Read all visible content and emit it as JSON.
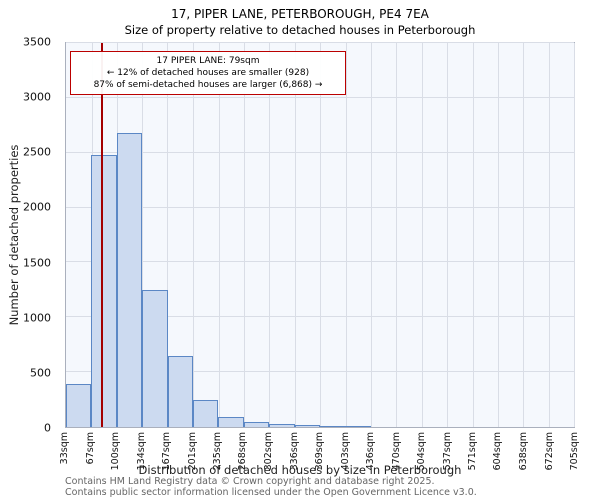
{
  "title": "17, PIPER LANE, PETERBOROUGH, PE4 7EA",
  "subtitle": "Size of property relative to detached houses in Peterborough",
  "annotation": {
    "line1": "17 PIPER LANE: 79sqm",
    "line2": "← 12% of detached houses are smaller (928)",
    "line3": "87% of semi-detached houses are larger (6,868) →",
    "border_color": "#bb0000"
  },
  "footer": {
    "line1": "Contains HM Land Registry data © Crown copyright and database right 2025.",
    "line2": "Contains public sector information licensed under the Open Government Licence v3.0."
  },
  "chart_data": {
    "type": "bar",
    "title": "17, PIPER LANE, PETERBOROUGH, PE4 7EA",
    "subtitle": "Size of property relative to detached houses in Peterborough",
    "xlabel": "Distribution of detached houses by size in Peterborough",
    "ylabel": "Number of detached properties",
    "bin_edges_sqm": [
      33,
      67,
      100,
      134,
      167,
      201,
      235,
      268,
      302,
      336,
      369,
      403,
      436,
      470,
      504,
      537,
      571,
      604,
      638,
      672,
      705
    ],
    "bin_edge_labels": [
      "33sqm",
      "67sqm",
      "100sqm",
      "134sqm",
      "167sqm",
      "201sqm",
      "235sqm",
      "268sqm",
      "302sqm",
      "336sqm",
      "369sqm",
      "403sqm",
      "436sqm",
      "470sqm",
      "504sqm",
      "537sqm",
      "571sqm",
      "604sqm",
      "638sqm",
      "672sqm",
      "705sqm"
    ],
    "values": [
      390,
      2480,
      2680,
      1250,
      650,
      250,
      90,
      45,
      25,
      15,
      10,
      5,
      0,
      0,
      0,
      0,
      0,
      0,
      0,
      0
    ],
    "ylim": [
      0,
      3500
    ],
    "yticks": [
      0,
      500,
      1000,
      1500,
      2000,
      2500,
      3000,
      3500
    ],
    "grid": true,
    "legend": "none",
    "marker": {
      "value_sqm": 79,
      "color": "#a40000"
    },
    "bar_fill": "#ccdaf0",
    "bar_border": "#5b87c5"
  }
}
